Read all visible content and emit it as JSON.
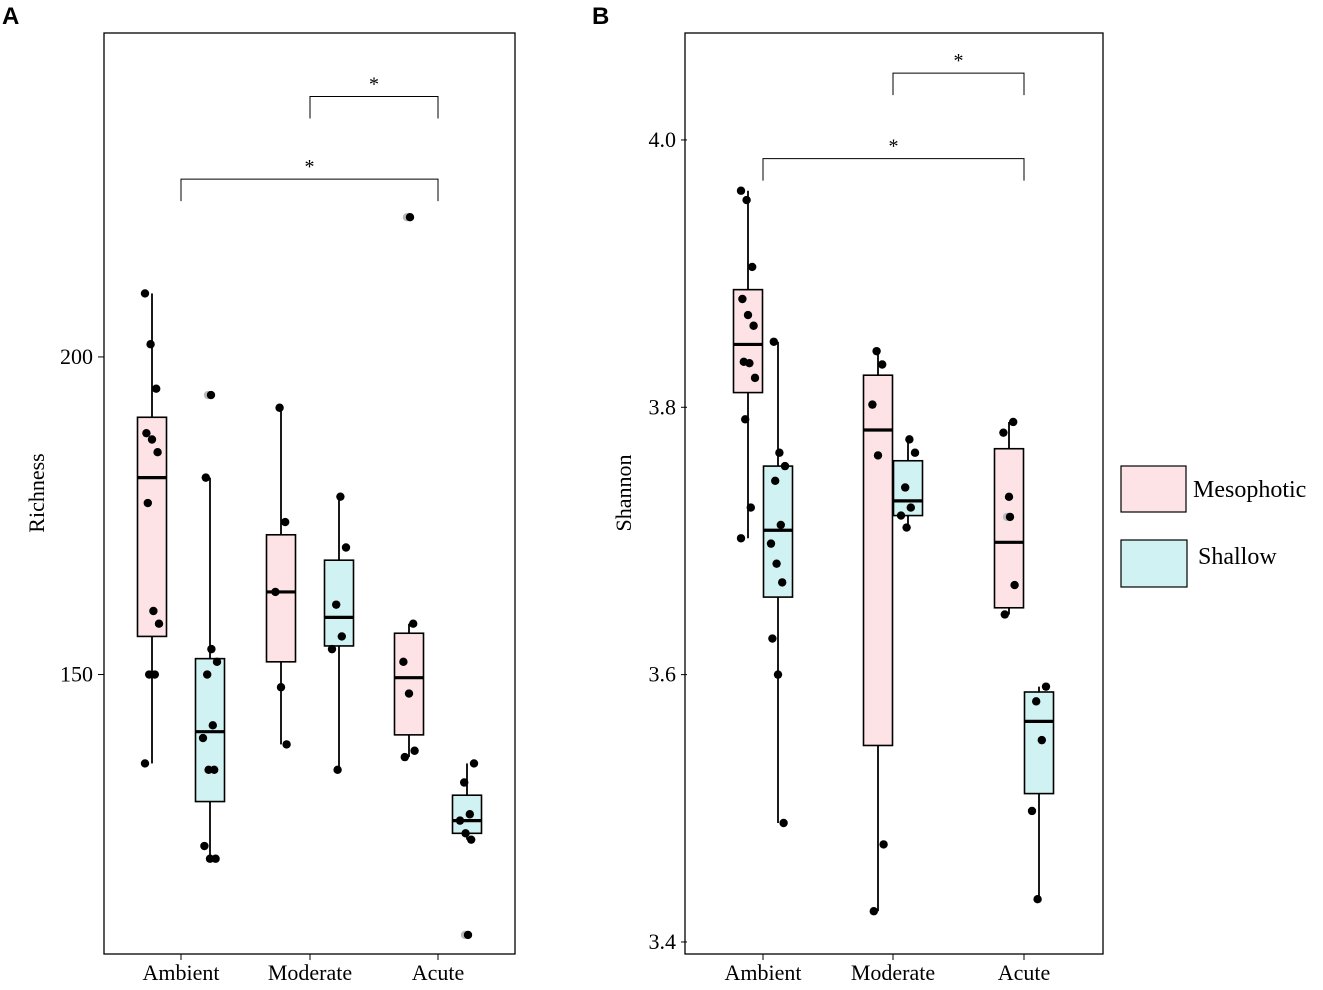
{
  "colors": {
    "mesophotic": "#fde3e6",
    "shallow": "#d0f2f3",
    "outlier": "#bbbbbb"
  },
  "legend": {
    "items": [
      {
        "key": "mesophotic",
        "label": "Mesophotic"
      },
      {
        "key": "shallow",
        "label": "Shallow"
      }
    ]
  },
  "chart_data": [
    {
      "type": "box",
      "panel": "A",
      "ylabel": "Richness",
      "ylim": [
        106,
        251
      ],
      "yticks": [
        150,
        200
      ],
      "categories": [
        "Ambient",
        "Moderate",
        "Acute"
      ],
      "significance": [
        {
          "from": "Moderate",
          "to": "Acute",
          "label": "*",
          "y": 241
        },
        {
          "from": "Ambient",
          "to": "Acute",
          "label": "*",
          "y": 228
        }
      ],
      "boxes": [
        {
          "category": "Ambient",
          "series": "mesophotic",
          "q1": 156,
          "median": 181,
          "q3": 190.5,
          "lo": 136,
          "hi": 210,
          "points": [
            210,
            202,
            195,
            188,
            187,
            185,
            177,
            160,
            158,
            150,
            150,
            136
          ],
          "outliers": []
        },
        {
          "category": "Ambient",
          "series": "shallow",
          "q1": 130,
          "median": 141,
          "q3": 152.5,
          "lo": 121,
          "hi": 181,
          "points": [
            181,
            154,
            152,
            150,
            142,
            140,
            135,
            135,
            123,
            121,
            121
          ],
          "outliers": [
            194
          ]
        },
        {
          "category": "Moderate",
          "series": "mesophotic",
          "q1": 152,
          "median": 163,
          "q3": 172,
          "lo": 139,
          "hi": 192,
          "points": [
            192,
            174,
            163,
            148,
            139
          ],
          "outliers": []
        },
        {
          "category": "Moderate",
          "series": "shallow",
          "q1": 154.5,
          "median": 159,
          "q3": 168,
          "lo": 135,
          "hi": 178,
          "points": [
            178,
            170,
            161,
            156,
            154,
            135
          ],
          "outliers": []
        },
        {
          "category": "Acute",
          "series": "mesophotic",
          "q1": 140.5,
          "median": 149.5,
          "q3": 156.5,
          "lo": 137,
          "hi": 158,
          "points": [
            158,
            152,
            147,
            138,
            137
          ],
          "outliers": [
            222
          ]
        },
        {
          "category": "Acute",
          "series": "shallow",
          "q1": 125,
          "median": 127,
          "q3": 131,
          "lo": 124,
          "hi": 136,
          "points": [
            136,
            133,
            128,
            127,
            125,
            124
          ],
          "outliers": [
            109
          ]
        }
      ]
    },
    {
      "type": "box",
      "panel": "B",
      "ylabel": "Shannon",
      "ylim": [
        3.391,
        4.08
      ],
      "yticks": [
        3.4,
        3.6,
        3.8,
        4.0
      ],
      "categories": [
        "Ambient",
        "Moderate",
        "Acute"
      ],
      "significance": [
        {
          "from": "Moderate",
          "to": "Acute",
          "label": "*",
          "y": 4.05
        },
        {
          "from": "Ambient",
          "to": "Acute",
          "label": "*",
          "y": 3.986
        }
      ],
      "boxes": [
        {
          "category": "Ambient",
          "series": "mesophotic",
          "q1": 3.811,
          "median": 3.847,
          "q3": 3.888,
          "lo": 3.702,
          "hi": 3.962,
          "points": [
            3.962,
            3.955,
            3.905,
            3.881,
            3.869,
            3.861,
            3.834,
            3.833,
            3.822,
            3.791,
            3.725,
            3.702
          ],
          "outliers": []
        },
        {
          "category": "Ambient",
          "series": "shallow",
          "q1": 3.658,
          "median": 3.708,
          "q3": 3.756,
          "lo": 3.489,
          "hi": 3.849,
          "points": [
            3.849,
            3.766,
            3.756,
            3.745,
            3.712,
            3.698,
            3.683,
            3.669,
            3.627,
            3.6,
            3.489
          ],
          "outliers": []
        },
        {
          "category": "Moderate",
          "series": "mesophotic",
          "q1": 3.547,
          "median": 3.783,
          "q3": 3.824,
          "lo": 3.423,
          "hi": 3.842,
          "points": [
            3.842,
            3.832,
            3.802,
            3.764,
            3.473,
            3.423
          ],
          "outliers": []
        },
        {
          "category": "Moderate",
          "series": "shallow",
          "q1": 3.719,
          "median": 3.73,
          "q3": 3.76,
          "lo": 3.71,
          "hi": 3.776,
          "points": [
            3.776,
            3.766,
            3.74,
            3.725,
            3.719,
            3.71
          ],
          "outliers": []
        },
        {
          "category": "Acute",
          "series": "mesophotic",
          "q1": 3.65,
          "median": 3.699,
          "q3": 3.769,
          "lo": 3.645,
          "hi": 3.789,
          "points": [
            3.789,
            3.781,
            3.733,
            3.667,
            3.645
          ],
          "outliers": [
            3.718
          ]
        },
        {
          "category": "Acute",
          "series": "shallow",
          "q1": 3.511,
          "median": 3.565,
          "q3": 3.587,
          "lo": 3.432,
          "hi": 3.591,
          "points": [
            3.591,
            3.58,
            3.551,
            3.498,
            3.432
          ],
          "outliers": []
        }
      ]
    }
  ]
}
